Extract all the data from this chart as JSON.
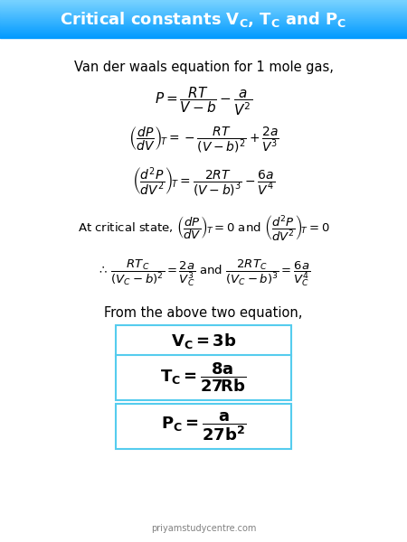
{
  "title": "Critical constants $\\mathbf{V_C}$, $\\mathbf{T_C}$ and $\\mathbf{P_C}$",
  "header_bg_top": "#00aaff",
  "header_bg_bot": "#aaddff",
  "text_color": "#000000",
  "header_text_color": "#ffffff",
  "box_border_color": "#55ccee",
  "watermark": "priyamstudycentre.com",
  "line1": "Van der waals equation for 1 mole gas,",
  "eq1": "$P = \\dfrac{RT}{V - b} - \\dfrac{a}{V^2}$",
  "eq2": "$\\left(\\dfrac{dP}{dV}\\right)_{\\!T} = -\\dfrac{RT}{(V-b)^2} + \\dfrac{2a}{V^3}$",
  "eq3": "$\\left(\\dfrac{d^2P}{dV^2}\\right)_{\\!T} = \\dfrac{2RT}{(V-b)^3} - \\dfrac{6a}{V^4}$",
  "eq4": "At critical state, $\\left(\\dfrac{dP}{dV}\\right)_{\\!T} = 0$ and $\\left(\\dfrac{d^2P}{dV^2}\\right)_{\\!T} = 0$",
  "eq5": "$\\therefore\\, \\dfrac{RT_C}{(V_C - b)^2} = \\dfrac{2a}{V_C^3}$ and $\\dfrac{2RT_C}{(V_C - b)^3} = \\dfrac{6a}{V_C^4}$",
  "line2": "From the above two equation,",
  "box1": "$\\mathbf{V_C = 3b}$",
  "box2": "$\\mathbf{T_C = \\dfrac{8a}{27Rb}}$",
  "box3": "$\\mathbf{P_C = \\dfrac{a}{27b^2}}$"
}
